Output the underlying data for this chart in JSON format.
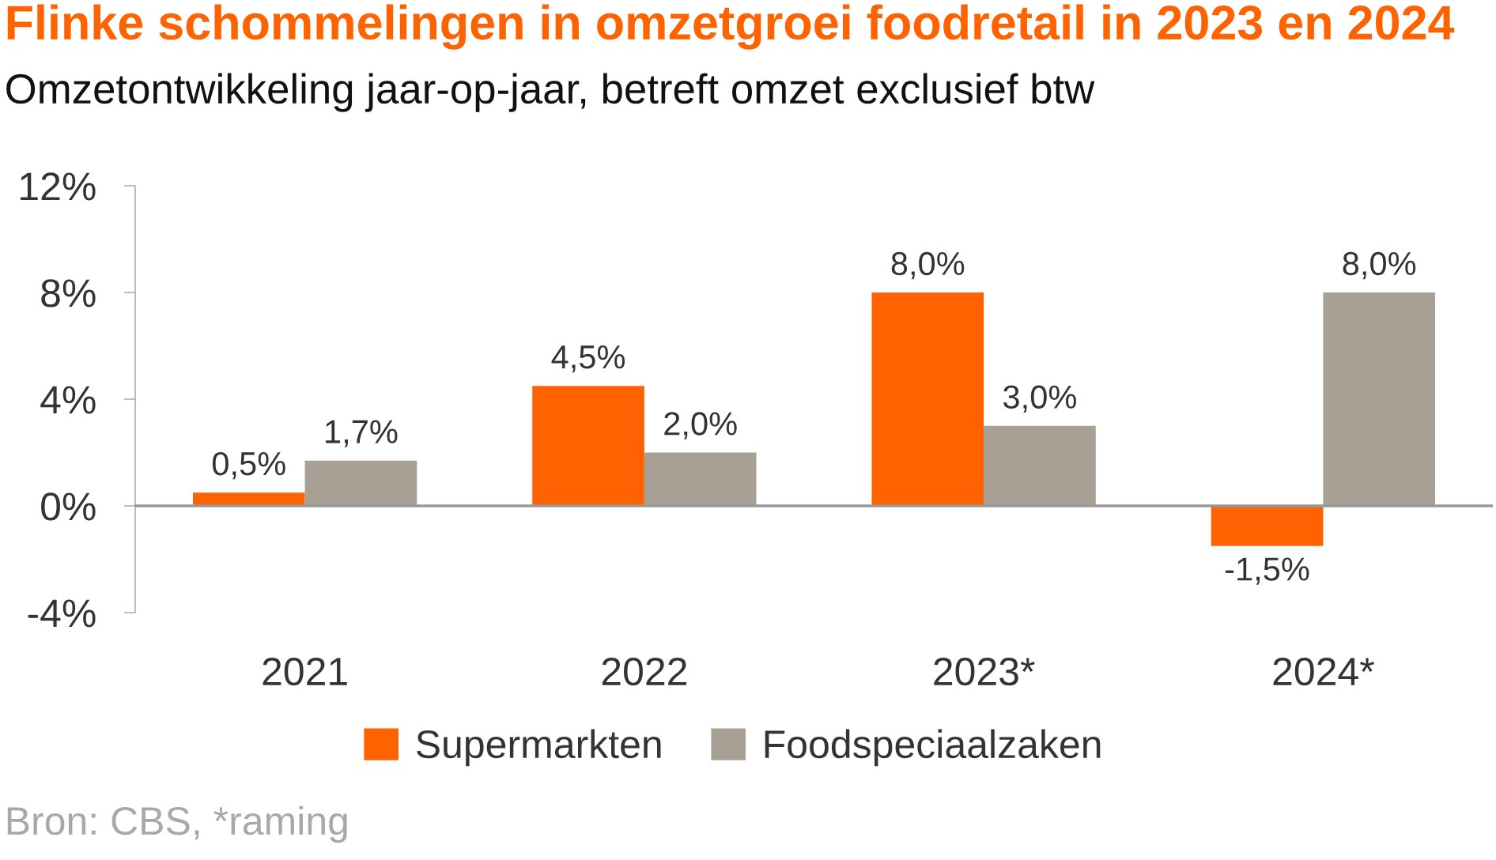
{
  "chart_data": {
    "type": "bar",
    "title": "Flinke schommelingen in omzetgroei foodretail in 2023 en 2024",
    "subtitle": "Omzetontwikkeling jaar-op-jaar, betreft omzet exclusief btw",
    "categories": [
      "2021",
      "2022",
      "2023*",
      "2024*"
    ],
    "series": [
      {
        "name": "Supermarkten",
        "color": "#ff6200",
        "values": [
          0.5,
          4.5,
          8.0,
          -1.5
        ],
        "value_labels": [
          "0,5%",
          "4,5%",
          "8,0%",
          "-1,5%"
        ]
      },
      {
        "name": "Foodspeciaalzaken",
        "color": "#a8a095",
        "values": [
          1.7,
          2.0,
          3.0,
          8.0
        ],
        "value_labels": [
          "1,7%",
          "2,0%",
          "3,0%",
          "8,0%"
        ]
      }
    ],
    "ylim": [
      -4,
      12
    ],
    "yticks": [
      {
        "value": -4,
        "label": "-4%"
      },
      {
        "value": 0,
        "label": "0%"
      },
      {
        "value": 4,
        "label": "4%"
      },
      {
        "value": 8,
        "label": "8%"
      },
      {
        "value": 12,
        "label": "12%"
      }
    ],
    "grid": false,
    "ref_lines": [
      {
        "axis": "y",
        "value": 0,
        "color": "#999999"
      }
    ],
    "legend": "bottom",
    "annotations": [
      "Bron: CBS, *raming"
    ]
  }
}
